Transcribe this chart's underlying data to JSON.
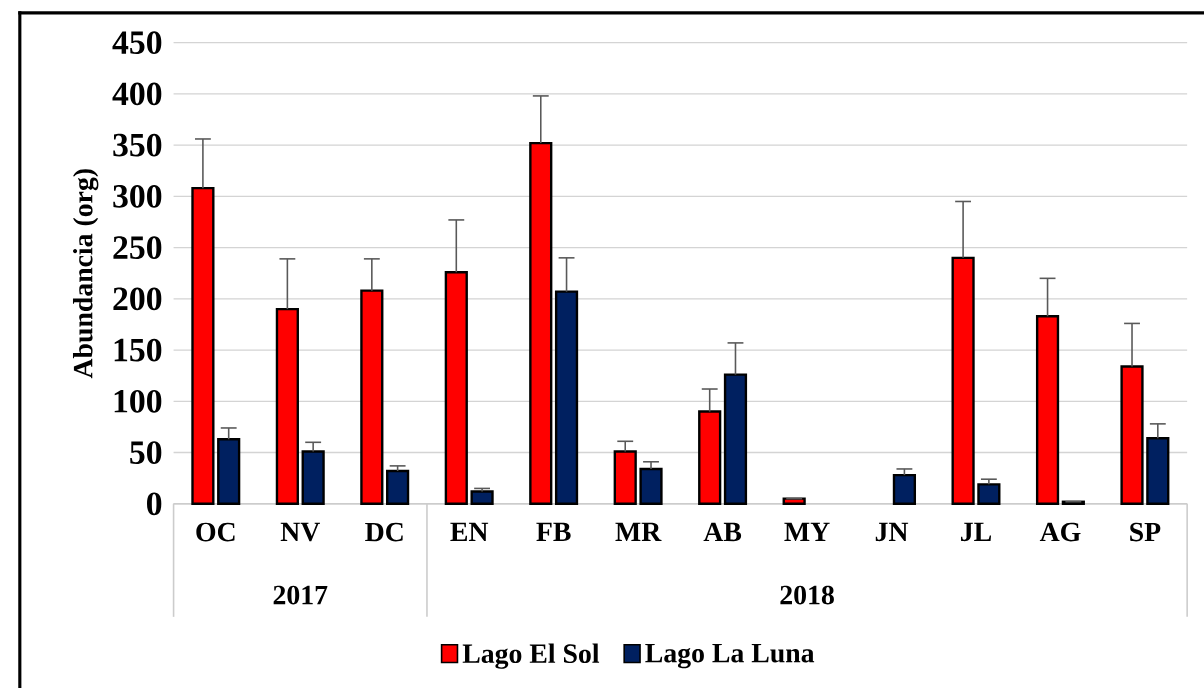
{
  "chart_data": {
    "type": "bar",
    "ylabel": "Abundancia (org)",
    "categories": [
      "OC",
      "NV",
      "DC",
      "EN",
      "FB",
      "MR",
      "AB",
      "MY",
      "JN",
      "JL",
      "AG",
      "SP"
    ],
    "series": [
      {
        "name": "Lago El Sol",
        "color": "#ff0000",
        "values": [
          308,
          190,
          208,
          226,
          352,
          51,
          90,
          5,
          null,
          240,
          183,
          134
        ],
        "errors": [
          48,
          49,
          31,
          51,
          46,
          10,
          22,
          null,
          null,
          55,
          37,
          42
        ]
      },
      {
        "name": "Lago La Luna",
        "color": "#002060",
        "values": [
          63,
          51,
          32,
          12,
          207,
          34,
          126,
          null,
          28,
          19,
          2,
          64
        ],
        "errors": [
          11,
          9,
          5,
          3,
          33,
          7,
          31,
          null,
          6,
          5,
          null,
          14
        ]
      }
    ],
    "annotations": [
      "2017",
      "2018"
    ],
    "ylim": [
      0,
      450
    ],
    "yticks": [
      0,
      50,
      100,
      150,
      200,
      250,
      300,
      350,
      400,
      450
    ],
    "grid": "y",
    "legend": "bottom"
  }
}
